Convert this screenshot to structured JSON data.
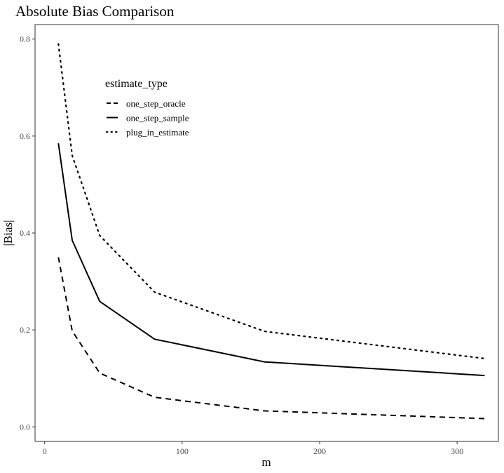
{
  "chart_data": {
    "type": "line",
    "title": "Absolute Bias Comparison",
    "xlabel": "m",
    "ylabel": "|Bias|",
    "xlim": [
      -7,
      330
    ],
    "ylim": [
      -0.03,
      0.83
    ],
    "xticks": [
      0,
      100,
      200,
      300
    ],
    "yticks": [
      0.0,
      0.2,
      0.4,
      0.6,
      0.8
    ],
    "ytick_labels": [
      "0.0",
      "0.2",
      "0.4",
      "0.6",
      "0.8"
    ],
    "grid": false,
    "legend": {
      "title": "estimate_type",
      "placement": "inside-top-left"
    },
    "x": [
      10,
      20,
      40,
      80,
      160,
      320
    ],
    "series": [
      {
        "name": "one_step_oracle",
        "dash": "dashed",
        "values": [
          0.35,
          0.198,
          0.111,
          0.061,
          0.033,
          0.017
        ]
      },
      {
        "name": "one_step_sample",
        "dash": "solid",
        "values": [
          0.585,
          0.385,
          0.259,
          0.181,
          0.134,
          0.106
        ]
      },
      {
        "name": "plug_in_estimate",
        "dash": "dotted",
        "values": [
          0.79,
          0.56,
          0.395,
          0.278,
          0.197,
          0.141
        ]
      }
    ]
  }
}
